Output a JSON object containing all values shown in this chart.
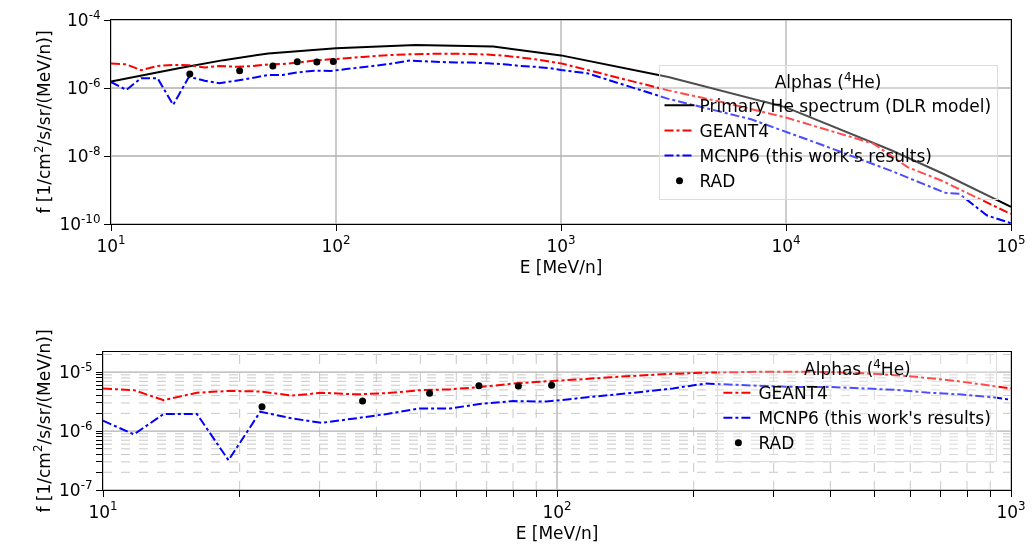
{
  "chart_data": [
    {
      "type": "line",
      "xlabel": "E [MeV/n]",
      "ylabel": "f [1/cm$^{2}$/s/sr/(MeV/n)]",
      "legend_title": "Alphas ($^{4}$He)",
      "log": "xy",
      "grid": true,
      "legend": "right",
      "xlim": [
        10,
        100000
      ],
      "ylim": [
        1e-10,
        0.0001
      ],
      "xticks": [
        {
          "value": 10,
          "label": "10$^{1}$"
        },
        {
          "value": 100,
          "label": "10$^{2}$"
        },
        {
          "value": 1000,
          "label": "10$^{3}$"
        },
        {
          "value": 10000,
          "label": "10$^{4}$"
        },
        {
          "value": 100000,
          "label": "10$^{5}$"
        }
      ],
      "yticks": [
        {
          "value": 1e-10,
          "label": "10$^{-10}$"
        },
        {
          "value": 1e-08,
          "label": "10$^{-8}$"
        },
        {
          "value": 1e-06,
          "label": "10$^{-6}$"
        },
        {
          "value": 0.0001,
          "label": "10$^{-4}$"
        }
      ],
      "series": [
        {
          "name": "Primary He spectrum (DLR model)",
          "color": "#000000",
          "line_style": "solid",
          "x": [
            10,
            20,
            31.6,
            50,
            100,
            226,
            500,
            1000,
            3000,
            10000,
            29200,
            50000,
            100000
          ],
          "values": [
            1.55e-06,
            3.8e-06,
            6.6e-06,
            1.04e-05,
            1.47e-05,
            1.84e-05,
            1.65e-05,
            9.1e-06,
            2.1e-06,
            2.7e-07,
            1.5e-08,
            3e-09,
            3.2e-10
          ]
        },
        {
          "name": "GEANT4",
          "color": "#ff0000",
          "line_style": "dashed",
          "x": [
            10,
            11.7,
            13.6,
            16.1,
            18.9,
            22.2,
            26.1,
            30.3,
            35.9,
            42.2,
            49.9,
            58.1,
            67.6,
            80.1,
            94.8,
            111,
            131,
            153,
            180,
            212,
            249,
            292,
            343,
            403,
            473,
            556,
            653,
            767,
            900,
            1000,
            1310,
            3000,
            5250,
            10000,
            24500,
            34700,
            49000,
            95000,
            100000
          ],
          "values": [
            5.28e-06,
            4.95e-06,
            3.35e-06,
            4.47e-06,
            4.8e-06,
            4.7e-06,
            4e-06,
            4.47e-06,
            4.2e-06,
            4.4e-06,
            4.95e-06,
            5.1e-06,
            5.6e-06,
            6.4e-06,
            7e-06,
            7.5e-06,
            8.2e-06,
            8.8e-06,
            9.4e-06,
            9.8e-06,
            1e-05,
            1.02e-05,
            1.02e-05,
            1e-05,
            9.6e-06,
            8.9e-06,
            8e-06,
            7e-06,
            5.9e-06,
            5.3e-06,
            3.4e-06,
            8.5e-07,
            3.8e-07,
            1.35e-07,
            2.3e-08,
            4.7e-09,
            1.9e-09,
            2.3e-10,
            2e-10
          ]
        },
        {
          "name": "MCNP6 (this work's results)",
          "color": "#0000ff",
          "line_style": "dashed",
          "x": [
            10,
            11.7,
            13.6,
            16.1,
            18.9,
            22.2,
            26.1,
            30.3,
            35.9,
            42.2,
            49.9,
            58.1,
            67.6,
            80.1,
            94.8,
            111,
            131,
            153,
            180,
            212,
            249,
            292,
            343,
            403,
            473,
            556,
            653,
            767,
            900,
            1000,
            1310,
            3000,
            7000,
            14000,
            29200,
            51000,
            59000,
            78000,
            100000
          ],
          "values": [
            1.5e-06,
            8.8e-07,
            1.95e-06,
            1.95e-06,
            3.2e-07,
            2.13e-06,
            1.64e-06,
            1.38e-06,
            1.64e-06,
            1.95e-06,
            2.42e-06,
            2.42e-06,
            2.88e-06,
            3.23e-06,
            3.17e-06,
            3.6e-06,
            4.1e-06,
            4.6e-06,
            5.3e-06,
            6.4e-06,
            6.1e-06,
            5.8e-06,
            5.6e-06,
            5.6e-06,
            5.3e-06,
            5e-06,
            4.5e-06,
            4.2e-06,
            3.8e-06,
            3.4e-06,
            2.7e-06,
            4.8e-07,
            1.2e-07,
            2.3e-08,
            3.7e-09,
            8.3e-10,
            7.7e-10,
            1.8e-10,
            1.05e-10
          ]
        },
        {
          "name": "RAD",
          "type": "scatter",
          "color": "#000000",
          "marker": "circle",
          "x": [
            22.4,
            37.3,
            52.4,
            67.3,
            82.2,
            97.3
          ],
          "values": [
            2.58e-06,
            3.23e-06,
            4.4e-06,
            5.9e-06,
            5.8e-06,
            6e-06
          ]
        }
      ]
    },
    {
      "type": "line",
      "xlabel": "E [MeV/n]",
      "ylabel": "f [1/cm$^{2}$/s/sr/(MeV/n)]",
      "legend_title": "Alphas ($^{4}$He)",
      "log": "xy",
      "grid": true,
      "legend": "top right",
      "xlim": [
        10,
        1000
      ],
      "ylim": [
        1e-07,
        2.2e-05
      ],
      "xticks": [
        {
          "value": 10,
          "label": "10$^{1}$"
        },
        {
          "value": 20,
          "label": null
        },
        {
          "value": 30,
          "label": null
        },
        {
          "value": 40,
          "label": null
        },
        {
          "value": 50,
          "label": null
        },
        {
          "value": 60,
          "label": null
        },
        {
          "value": 70,
          "label": null
        },
        {
          "value": 80,
          "label": null
        },
        {
          "value": 90,
          "label": null
        },
        {
          "value": 100,
          "label": "10$^{2}$"
        },
        {
          "value": 200,
          "label": null
        },
        {
          "value": 300,
          "label": null
        },
        {
          "value": 400,
          "label": null
        },
        {
          "value": 500,
          "label": null
        },
        {
          "value": 600,
          "label": null
        },
        {
          "value": 700,
          "label": null
        },
        {
          "value": 800,
          "label": null
        },
        {
          "value": 900,
          "label": null
        },
        {
          "value": 1000,
          "label": "10$^{3}$"
        }
      ],
      "yticks": [
        {
          "value": 1e-07,
          "label": "10$^{-7}$"
        },
        {
          "value": 2e-07,
          "label": null
        },
        {
          "value": 3e-07,
          "label": null
        },
        {
          "value": 4e-07,
          "label": null
        },
        {
          "value": 5e-07,
          "label": null
        },
        {
          "value": 6e-07,
          "label": null
        },
        {
          "value": 7e-07,
          "label": null
        },
        {
          "value": 8e-07,
          "label": null
        },
        {
          "value": 9e-07,
          "label": null
        },
        {
          "value": 1e-06,
          "label": "10$^{-6}$"
        },
        {
          "value": 2e-06,
          "label": null
        },
        {
          "value": 3e-06,
          "label": null
        },
        {
          "value": 4e-06,
          "label": null
        },
        {
          "value": 5e-06,
          "label": null
        },
        {
          "value": 6e-06,
          "label": null
        },
        {
          "value": 7e-06,
          "label": null
        },
        {
          "value": 8e-06,
          "label": null
        },
        {
          "value": 9e-06,
          "label": null
        },
        {
          "value": 1e-05,
          "label": "10$^{-5}$"
        },
        {
          "value": 2e-05,
          "label": null
        }
      ],
      "series": [
        {
          "name": "GEANT4",
          "color": "#ff0000",
          "line_style": "dashed",
          "x": [
            10,
            11.7,
            13.6,
            16.1,
            18.9,
            22.2,
            26.1,
            30.3,
            35.9,
            42.2,
            49.9,
            58.1,
            67.6,
            80.1,
            94.8,
            111,
            131,
            153,
            180,
            212,
            249,
            292,
            343,
            403,
            473,
            556,
            653,
            767,
            900,
            1000
          ],
          "values": [
            5.28e-06,
            4.95e-06,
            3.35e-06,
            4.47e-06,
            4.8e-06,
            4.7e-06,
            4e-06,
            4.47e-06,
            4.2e-06,
            4.4e-06,
            4.95e-06,
            5.1e-06,
            5.6e-06,
            6.4e-06,
            7e-06,
            7.5e-06,
            8.2e-06,
            8.8e-06,
            9.4e-06,
            9.8e-06,
            1e-05,
            1.02e-05,
            1.02e-05,
            1e-05,
            9.6e-06,
            8.9e-06,
            8e-06,
            7e-06,
            5.9e-06,
            5.3e-06
          ]
        },
        {
          "name": "MCNP6 (this work's results)",
          "color": "#0000ff",
          "line_style": "dashed",
          "x": [
            10,
            11.7,
            13.6,
            16.1,
            18.9,
            22.2,
            26.1,
            30.3,
            35.9,
            42.2,
            49.9,
            58.1,
            67.6,
            80.1,
            94.8,
            111,
            131,
            153,
            180,
            212,
            249,
            292,
            343,
            403,
            473,
            556,
            653,
            767,
            900,
            1000
          ],
          "values": [
            1.5e-06,
            8.8e-07,
            1.95e-06,
            1.95e-06,
            3.2e-07,
            2.13e-06,
            1.64e-06,
            1.38e-06,
            1.64e-06,
            1.95e-06,
            2.42e-06,
            2.42e-06,
            2.88e-06,
            3.23e-06,
            3.17e-06,
            3.6e-06,
            4.1e-06,
            4.6e-06,
            5.3e-06,
            6.4e-06,
            6.1e-06,
            5.8e-06,
            5.6e-06,
            5.6e-06,
            5.3e-06,
            5e-06,
            4.5e-06,
            4.2e-06,
            3.8e-06,
            3.4e-06
          ]
        },
        {
          "name": "RAD",
          "type": "scatter",
          "color": "#000000",
          "marker": "circle",
          "x": [
            22.4,
            37.3,
            52.4,
            67.3,
            82.2,
            97.3
          ],
          "values": [
            2.58e-06,
            3.23e-06,
            4.4e-06,
            5.9e-06,
            5.8e-06,
            6e-06
          ]
        }
      ]
    }
  ]
}
